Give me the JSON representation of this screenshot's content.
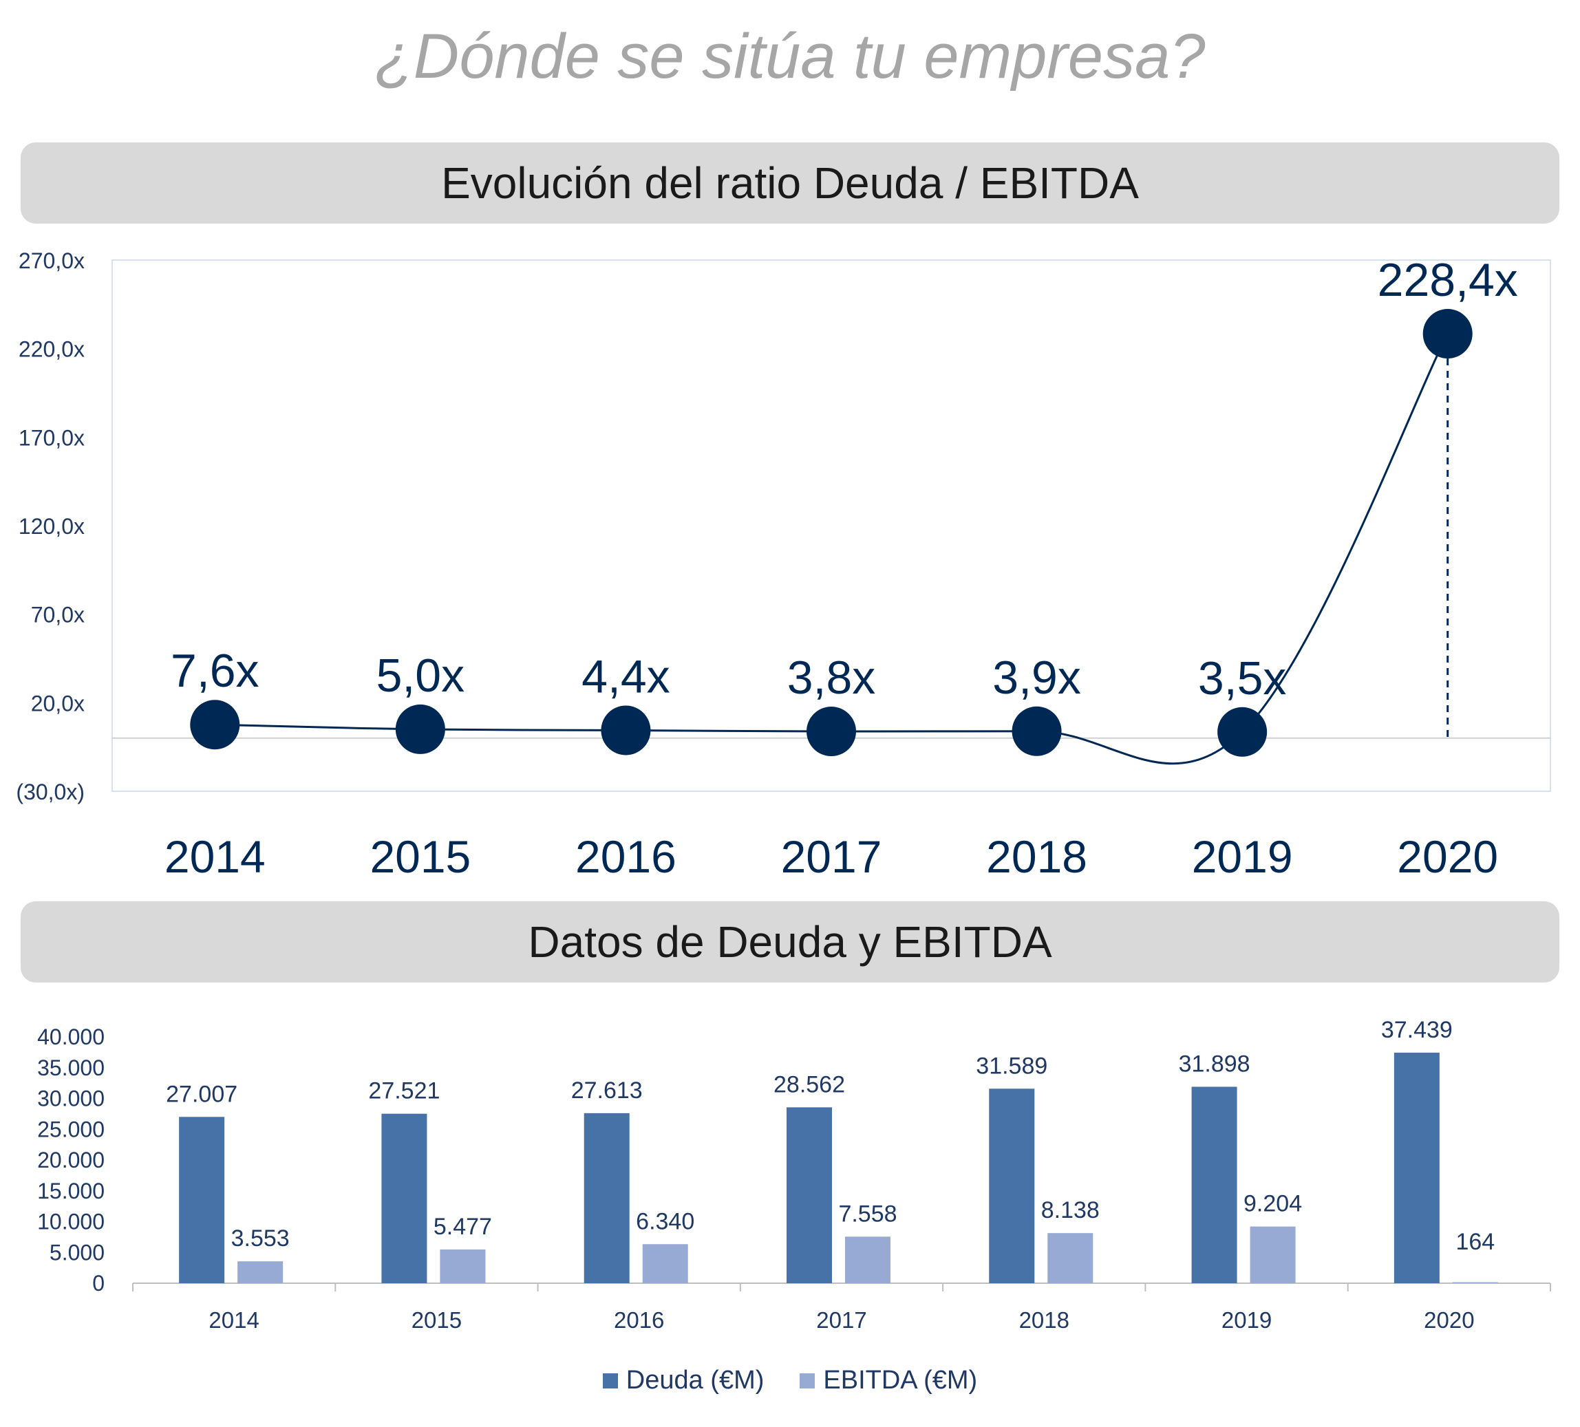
{
  "page_title": "¿Dónde se sitúa tu empresa?",
  "chart_data": [
    {
      "type": "line",
      "title": "Evolución del ratio Deuda / EBITDA",
      "x": [
        "2014",
        "2015",
        "2016",
        "2017",
        "2018",
        "2019",
        "2020"
      ],
      "values": [
        7.6,
        5.0,
        4.4,
        3.8,
        3.9,
        3.5,
        228.4
      ],
      "data_labels": [
        "7,6x",
        "5,0x",
        "4,4x",
        "3,8x",
        "3,9x",
        "3,5x",
        "228,4x"
      ],
      "y_ticks": [
        -30,
        20,
        70,
        120,
        170,
        220,
        270
      ],
      "y_tick_labels": [
        "(30,0x)",
        "20,0x",
        "70,0x",
        "120,0x",
        "170,0x",
        "220,0x",
        "270,0x"
      ],
      "ylim": [
        -30,
        270
      ],
      "grid": false,
      "colors": {
        "line": "#002855",
        "marker": "#002855",
        "label": "#002855"
      }
    },
    {
      "type": "bar",
      "title": "Datos de Deuda y EBITDA",
      "categories": [
        "2014",
        "2015",
        "2016",
        "2017",
        "2018",
        "2019",
        "2020"
      ],
      "series": [
        {
          "name": "Deuda (€M)",
          "values": [
            27007,
            27521,
            27613,
            28562,
            31589,
            31898,
            37439
          ],
          "labels": [
            "27.007",
            "27.521",
            "27.613",
            "28.562",
            "31.589",
            "31.898",
            "37.439"
          ],
          "color": "#4672a8"
        },
        {
          "name": "EBITDA (€M)",
          "values": [
            3553,
            5477,
            6340,
            7558,
            8138,
            9204,
            164
          ],
          "labels": [
            "3.553",
            "5.477",
            "6.340",
            "7.558",
            "8.138",
            "9.204",
            "164"
          ],
          "color": "#97aad3"
        }
      ],
      "y_ticks": [
        0,
        5000,
        10000,
        15000,
        20000,
        25000,
        30000,
        35000,
        40000
      ],
      "y_tick_labels": [
        "0",
        "5.000",
        "10.000",
        "15.000",
        "20.000",
        "25.000",
        "30.000",
        "35.000",
        "40.000"
      ],
      "ylim": [
        0,
        40000
      ],
      "grid": false,
      "legend": "bottom-center"
    }
  ]
}
